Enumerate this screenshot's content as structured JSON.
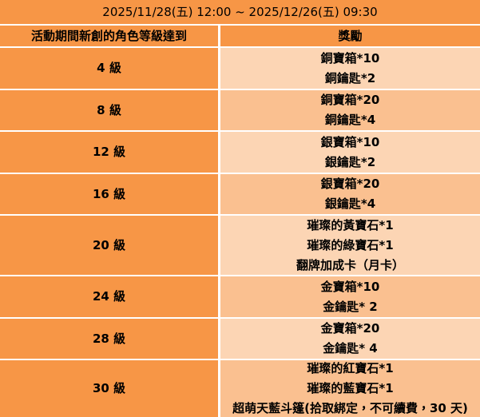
{
  "header": {
    "date_range": "2025/11/28(五) 12:00 ~ 2025/12/26(五) 09:30"
  },
  "columns": {
    "level": "活動期間新創的角色等級達到",
    "reward": "獎勵"
  },
  "rows": [
    {
      "level": "4 級",
      "shade": "light",
      "rewards": [
        "銅寶箱*10",
        "銅鑰匙*2"
      ]
    },
    {
      "level": "8 級",
      "shade": "mid",
      "rewards": [
        "銅寶箱*20",
        "銅鑰匙*4"
      ]
    },
    {
      "level": "12 級",
      "shade": "light",
      "rewards": [
        "銀寶箱*10",
        "銀鑰匙*2"
      ]
    },
    {
      "level": "16 級",
      "shade": "mid",
      "rewards": [
        "銀寶箱*20",
        "銀鑰匙*4"
      ]
    },
    {
      "level": "20 級",
      "shade": "light",
      "rewards": [
        "璀璨的黃寶石*1",
        "璀璨的綠寶石*1",
        "翻牌加成卡（月卡）"
      ]
    },
    {
      "level": "24 級",
      "shade": "mid",
      "rewards": [
        "金寶箱*10",
        "金鑰匙* 2"
      ]
    },
    {
      "level": "28 級",
      "shade": "light",
      "rewards": [
        "金寶箱*20",
        "金鑰匙* 4"
      ]
    },
    {
      "level": "30 級",
      "shade": "mid",
      "rewards": [
        "璀璨的紅寶石*1",
        "璀璨的藍寶石*1",
        "超萌天藍斗篷(拾取綁定，不可續費，30 天)"
      ]
    }
  ],
  "colors": {
    "orange": "#F79646",
    "light_peach": "#FCD5B4",
    "mid_peach": "#FAC090",
    "grid_line": "#FFFFFF",
    "text": "#000000"
  }
}
